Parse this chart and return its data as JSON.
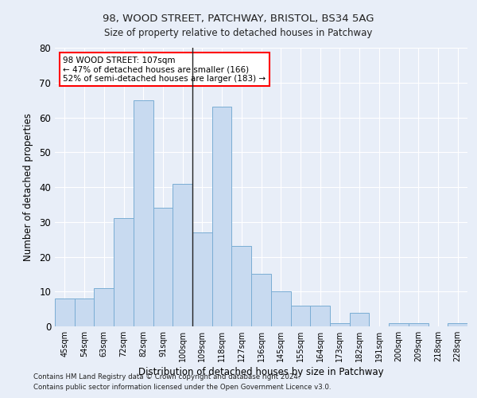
{
  "title1": "98, WOOD STREET, PATCHWAY, BRISTOL, BS34 5AG",
  "title2": "Size of property relative to detached houses in Patchway",
  "xlabel": "Distribution of detached houses by size in Patchway",
  "ylabel": "Number of detached properties",
  "bar_color": "#c8daf0",
  "bar_edge_color": "#7aadd4",
  "categories": [
    "45sqm",
    "54sqm",
    "63sqm",
    "72sqm",
    "82sqm",
    "91sqm",
    "100sqm",
    "109sqm",
    "118sqm",
    "127sqm",
    "136sqm",
    "145sqm",
    "155sqm",
    "164sqm",
    "173sqm",
    "182sqm",
    "191sqm",
    "200sqm",
    "209sqm",
    "218sqm",
    "228sqm"
  ],
  "values": [
    8,
    8,
    11,
    31,
    65,
    34,
    41,
    27,
    63,
    23,
    15,
    10,
    6,
    6,
    1,
    4,
    0,
    1,
    1,
    0,
    1
  ],
  "ylim": [
    0,
    80
  ],
  "yticks": [
    0,
    10,
    20,
    30,
    40,
    50,
    60,
    70,
    80
  ],
  "annotation_line1": "98 WOOD STREET: 107sqm",
  "annotation_line2": "← 47% of detached houses are smaller (166)",
  "annotation_line3": "52% of semi-detached houses are larger (183) →",
  "vline_index": 6.5,
  "footnote1": "Contains HM Land Registry data © Crown copyright and database right 2024.",
  "footnote2": "Contains public sector information licensed under the Open Government Licence v3.0.",
  "background_color": "#e8eef8",
  "plot_bg_color": "#e8eef8",
  "grid_color": "#ffffff"
}
